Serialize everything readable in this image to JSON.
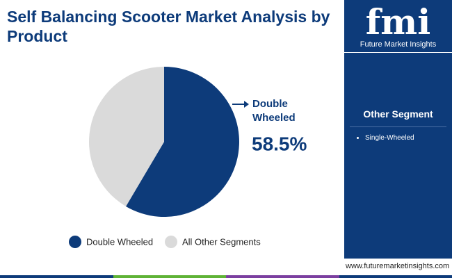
{
  "chart_data": {
    "type": "pie",
    "title": "Self Balancing Scooter Market Analysis by Product",
    "categories": [
      "Double Wheeled",
      "All Other Segments"
    ],
    "values": [
      58.5,
      41.5
    ],
    "value_labels": [
      "58.5%",
      null
    ],
    "colors": [
      "#0d3b7a",
      "#dadada"
    ]
  },
  "sidebar": {
    "title": "Other Segment",
    "items": [
      "Single-Wheeled"
    ]
  },
  "branding": {
    "logo": "fmi",
    "company": "Future Market Insights",
    "url": "www.futuremarketinsights.com"
  }
}
